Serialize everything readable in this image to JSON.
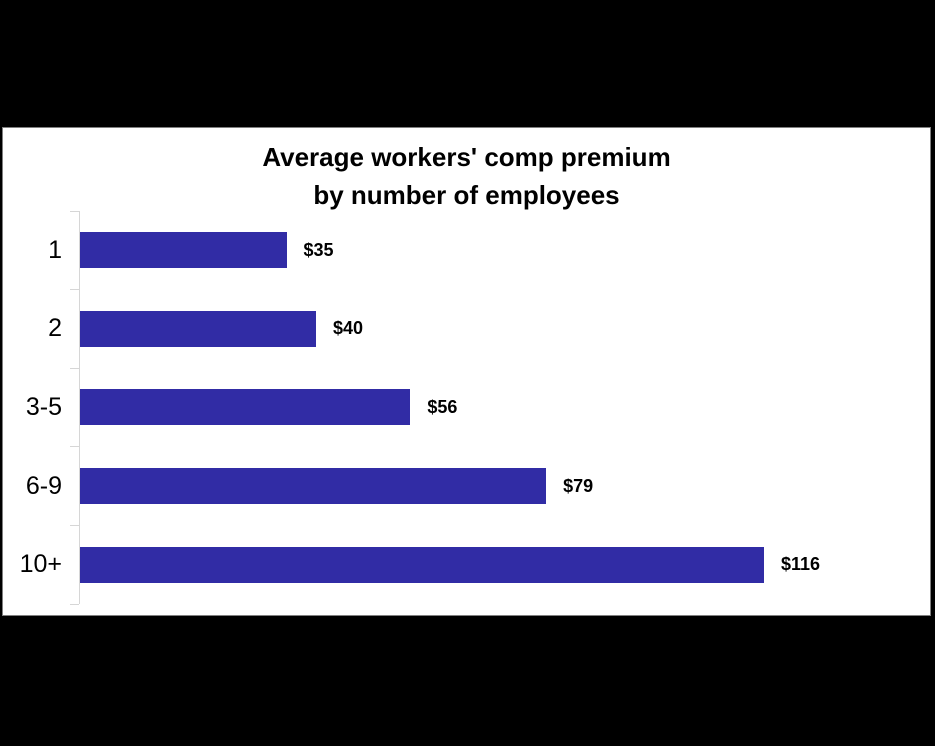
{
  "page": {
    "background": "#000000"
  },
  "chart_data": {
    "type": "bar",
    "orientation": "horizontal",
    "title": "Average workers' comp premium by number of employees",
    "title_lines": [
      "Average workers' comp premium",
      "by number of employees"
    ],
    "categories": [
      "1",
      "2",
      "3-5",
      "6-9",
      "10+"
    ],
    "values": [
      35,
      40,
      56,
      79,
      116
    ],
    "value_labels": [
      "$35",
      "$40",
      "$56",
      "$79",
      "$116"
    ],
    "xlabel": "",
    "ylabel": "",
    "xlim": [
      0,
      120
    ],
    "grid": false,
    "legend_position": "none",
    "bar_color": "#312CA5",
    "axis_color": "#D6D6D6",
    "panel_background": "#FFFFFF",
    "text_color": "#000000"
  }
}
